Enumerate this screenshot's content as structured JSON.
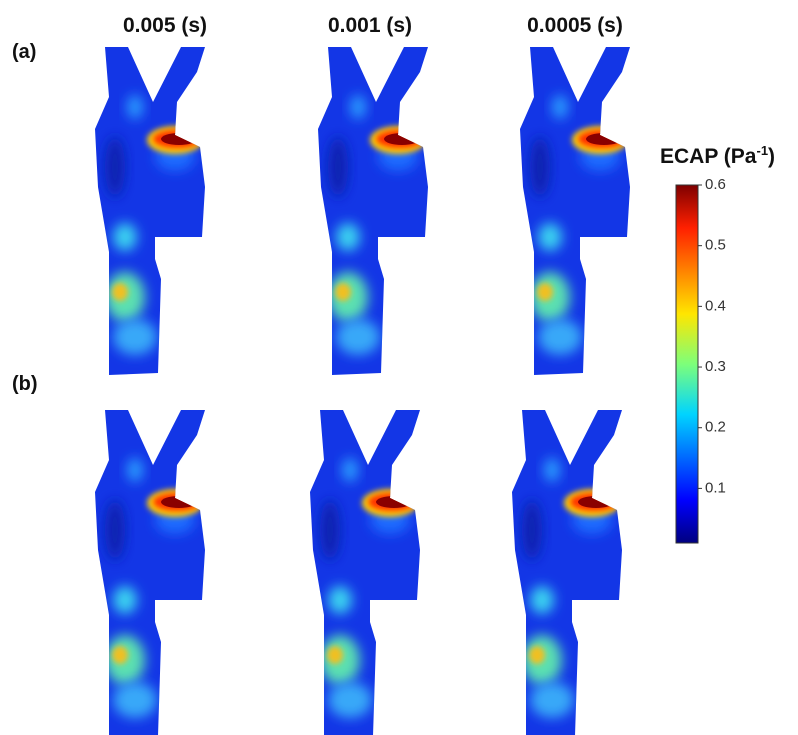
{
  "columns": [
    "0.005 (s)",
    "0.001 (s)",
    "0.0005 (s)"
  ],
  "rows": [
    "(a)",
    "(b)"
  ],
  "colorbar": {
    "title": "ECAP (Pa",
    "title_sup": "-1",
    "title_end": ")",
    "lim": [
      0.01,
      0.6
    ],
    "ticks": [
      0.1,
      0.2,
      0.3,
      0.4,
      0.5,
      0.6
    ]
  }
}
